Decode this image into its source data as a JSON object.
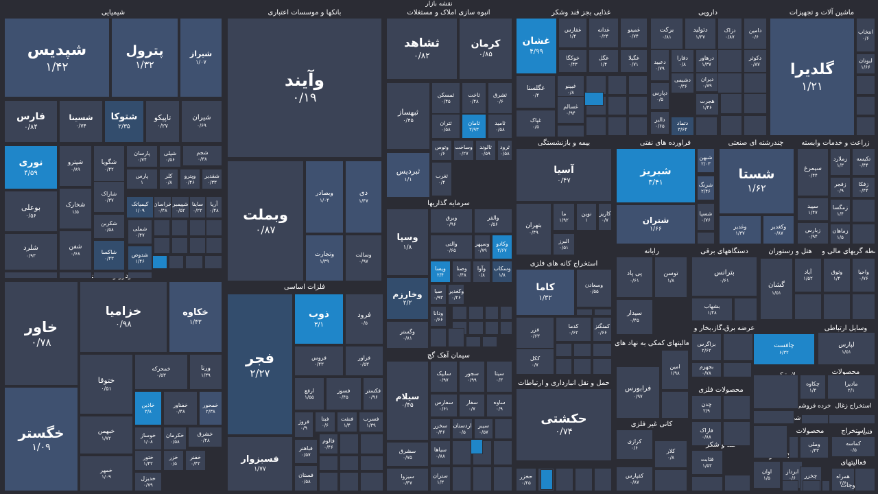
{
  "header": {
    "title": "نقشه بازار"
  },
  "colors": {
    "background": "#2b2c34",
    "neutral": "#3b4356",
    "light": "#3f5170",
    "medium": "#334d6d",
    "strong": "#1f86c9",
    "label": "#ffffff"
  },
  "chart_data": {
    "type": "treemap",
    "title": "نقشه بازار",
    "sectors": [
      {
        "name": "شیمیایی",
        "items": [
          {
            "n": "شپدیس",
            "v": "۱/۴۲"
          },
          {
            "n": "پترول",
            "v": "۱/۳۲"
          },
          {
            "n": "شیراز",
            "v": "۱/۰۷"
          },
          {
            "n": "فارس",
            "v": "۰/۸۴"
          },
          {
            "n": "شسینا",
            "v": "۰/۷۴"
          },
          {
            "n": "شتوکا",
            "v": "۲/۳۵"
          },
          {
            "n": "تاپیکو",
            "v": "۰/۲۷"
          },
          {
            "n": "شیران",
            "v": "۰/۶۹"
          },
          {
            "n": "نوری",
            "v": "۴/۵۹"
          },
          {
            "n": "شپترو",
            "v": "۰/۸۹"
          },
          {
            "n": "شگویا",
            "v": "۰/۴۲"
          },
          {
            "n": "پارسان",
            "v": "۰/۷۴"
          },
          {
            "n": "شپلی",
            "v": "۰/۵۶"
          },
          {
            "n": "شجم",
            "v": "۰/۳۸"
          },
          {
            "n": "پارس",
            "v": "۱"
          },
          {
            "n": "کلر",
            "v": "۰/۸"
          },
          {
            "n": "وپترو",
            "v": "۰/۴۶"
          },
          {
            "n": "شفدیر",
            "v": "۰/۳۳"
          },
          {
            "n": "بوعلی",
            "v": "۰/۵۶"
          },
          {
            "n": "شخارک",
            "v": "۱/۵"
          },
          {
            "n": "شاراک",
            "v": "۰/۳۷"
          },
          {
            "n": "کیمیاتک",
            "v": "۱/۰۹"
          },
          {
            "n": "خراسان",
            "v": "۰/۴۸"
          },
          {
            "n": "شپیمبر",
            "v": "۰/۵۲"
          },
          {
            "n": "ساینا",
            "v": "۰/۲۲"
          },
          {
            "n": "آریا",
            "v": "۰/۴۸"
          },
          {
            "n": "شلرد",
            "v": "۰/۹۳"
          },
          {
            "n": "شفن",
            "v": "۰/۶۸"
          },
          {
            "n": "شکربن",
            "v": "۰/۵۸"
          },
          {
            "n": "شملی",
            "v": "۰/۴۷"
          },
          {
            "n": "شاکسا",
            "v": "۰/۴۳"
          },
          {
            "n": "شدوص",
            "v": "۱/۴۶"
          }
        ]
      },
      {
        "name": "بانکها و موسسات اعتباری",
        "items": [
          {
            "n": "وآیند",
            "v": "۰/۱۹"
          },
          {
            "n": "وبملت",
            "v": "۰/۸۷"
          },
          {
            "n": "وبصادر",
            "v": "۱/۰۴"
          },
          {
            "n": "دی",
            "v": "۱/۴۷"
          },
          {
            "n": "وتجارت",
            "v": "۱/۳۹"
          },
          {
            "n": "وسالت",
            "v": "۰/۹۷"
          }
        ]
      },
      {
        "name": "انبوه سازی املاک و مستغلات",
        "items": [
          {
            "n": "ثشاهد",
            "v": "۰/۸۲"
          },
          {
            "n": "کرمان",
            "v": "۰/۸۵"
          },
          {
            "n": "ثبهساز",
            "v": "۰/۴۵"
          },
          {
            "n": "ثمسکن",
            "v": "۰/۴۵"
          },
          {
            "n": "ثاخت",
            "v": "۰/۴۸"
          },
          {
            "n": "ثشرق",
            "v": "۰/۶"
          },
          {
            "n": "ثتران",
            "v": "۰/۵۸"
          },
          {
            "n": "ثامان",
            "v": "۲/۹۳"
          },
          {
            "n": "ثامید",
            "v": "۰/۵۸"
          },
          {
            "n": "وتوس",
            "v": "۰/۶"
          },
          {
            "n": "وساخت",
            "v": "۰/۲۷"
          },
          {
            "n": "ثالوند",
            "v": "۰/۵۹"
          },
          {
            "n": "ثرود",
            "v": "۰/۵۸"
          },
          {
            "n": "ثبردیس",
            "v": "۱/۱"
          },
          {
            "n": "ثغرب",
            "v": "۰/۴"
          }
        ]
      },
      {
        "name": "غذایی بجز قند وشکر",
        "items": [
          {
            "n": "غشان",
            "v": "۴/۹۹"
          },
          {
            "n": "غفارس",
            "v": "۱/۴"
          },
          {
            "n": "غدانه",
            "v": "۰/۲۴"
          },
          {
            "n": "غمینو",
            "v": "۰/۷۴"
          },
          {
            "n": "خوکگا",
            "v": "۰/۴۳"
          },
          {
            "n": "غگل",
            "v": "۱/۴"
          },
          {
            "n": "غگیلا",
            "v": "۰/۷۱"
          },
          {
            "n": "غگلستا",
            "v": "۰/۴"
          },
          {
            "n": "غبینو",
            "v": "۰/۸"
          },
          {
            "n": "غسالم",
            "v": "۰/۹۴"
          },
          {
            "n": "غپاک",
            "v": "۰/۵"
          }
        ]
      },
      {
        "name": "دارویی",
        "items": [
          {
            "n": "برکت",
            "v": "۰/۸۱"
          },
          {
            "n": "دتولید",
            "v": "۱/۳۷"
          },
          {
            "n": "دزاک",
            "v": "۰/۸۷"
          },
          {
            "n": "دامین",
            "v": "۰/۶"
          },
          {
            "n": "دعبید",
            "v": "۰/۷۹"
          },
          {
            "n": "دفارا",
            "v": "۰/۸"
          },
          {
            "n": "درهاور",
            "v": "۱/۳۷"
          },
          {
            "n": "دکوثر",
            "v": "۰/۸۷"
          },
          {
            "n": "دشیمی",
            "v": "۰/۳۶"
          },
          {
            "n": "دیران",
            "v": "۰/۸۹"
          },
          {
            "n": "دپارس",
            "v": "۰/۵"
          },
          {
            "n": "هجرت",
            "v": "۱/۴۶"
          },
          {
            "n": "دالبر",
            "v": "۰/۶۵"
          },
          {
            "n": "دتماد",
            "v": "۳/۶۴"
          }
        ]
      },
      {
        "name": "ماشین آلات و تجهیزات",
        "items": [
          {
            "n": "گلدیرا",
            "v": "۱/۲۱"
          },
          {
            "n": "انتخاب",
            "v": "۰/۶"
          },
          {
            "n": "لبونان",
            "v": "۱/۶۶"
          }
        ]
      },
      {
        "name": "بیمه و بازنشستگی",
        "items": [
          {
            "n": "آسیا",
            "v": "۰/۴۷"
          },
          {
            "n": "بتهران",
            "v": "۰/۴۹"
          },
          {
            "n": "ما",
            "v": "۱/۹۲"
          },
          {
            "n": "نوین",
            "v": "۱"
          },
          {
            "n": "کاریز",
            "v": "۰/۷"
          },
          {
            "n": "البرز",
            "v": "۰/۵۱"
          }
        ]
      },
      {
        "name": "فراورده های نفتی",
        "items": [
          {
            "n": "شبریز",
            "v": "۳/۴۱"
          },
          {
            "n": "شبهن",
            "v": "۲/۰۳"
          },
          {
            "n": "شرنگ",
            "v": "۲/۴۶"
          },
          {
            "n": "شتران",
            "v": "۱/۶۶"
          },
          {
            "n": "شسپا",
            "v": "۰/۷۶"
          }
        ]
      },
      {
        "name": "چندرشته ای صنعتی",
        "items": [
          {
            "n": "شستا",
            "v": "۱/۶۲"
          },
          {
            "n": "وغدیر",
            "v": "۱/۳۷"
          },
          {
            "n": "وکغدیر",
            "v": "۰/۸۷"
          }
        ]
      },
      {
        "name": "زراعت و خدمات وابسته",
        "items": [
          {
            "n": "سیمرغ",
            "v": "۰/۴۴"
          },
          {
            "n": "زملارد",
            "v": "۱/۳"
          },
          {
            "n": "تکیسه",
            "v": "۰/۴۴"
          },
          {
            "n": "زفجر",
            "v": "۰/۹"
          },
          {
            "n": "زفکا",
            "v": "۰/۴۴"
          },
          {
            "n": "سپید",
            "v": "۱/۴۷"
          },
          {
            "n": "زمگسا",
            "v": "۱/۴"
          },
          {
            "n": "زبارس",
            "v": "۰/۹۴"
          },
          {
            "n": "زماهان",
            "v": "۱/۵"
          }
        ]
      },
      {
        "name": "خودرو و قطعات",
        "items": [
          {
            "n": "خاور",
            "v": "۰/۷۸"
          },
          {
            "n": "خزامیا",
            "v": "۰/۹۸"
          },
          {
            "n": "خکاوه",
            "v": "۱/۴۳"
          },
          {
            "n": "ختوقا",
            "v": "۰/۵۱"
          },
          {
            "n": "خمحرکه",
            "v": "۰/۵۳"
          },
          {
            "n": "ورنا",
            "v": "۱/۳۹"
          },
          {
            "n": "خگستر",
            "v": "۱/۰۹"
          },
          {
            "n": "خاذین",
            "v": "۳/۸"
          },
          {
            "n": "خفناور",
            "v": "۰/۴۸"
          },
          {
            "n": "خمحور",
            "v": "۲/۳۸"
          },
          {
            "n": "خبهمن",
            "v": "۱/۷۲"
          },
          {
            "n": "خوساز",
            "v": "۱/۰۸"
          },
          {
            "n": "خکرمان",
            "v": "۰/۵۸"
          },
          {
            "n": "خشرق",
            "v": "۰/۲۸"
          },
          {
            "n": "خمهر",
            "v": "۱/۰۹"
          },
          {
            "n": "ختور",
            "v": "۱/۴۲"
          },
          {
            "n": "خزر",
            "v": "۰/۵"
          },
          {
            "n": "خفنر",
            "v": "۰/۴۲"
          },
          {
            "n": "خدیزل",
            "v": "۰/۷۹"
          }
        ]
      },
      {
        "name": "فلزات اساسی",
        "items": [
          {
            "n": "فجر",
            "v": "۲/۲۷"
          },
          {
            "n": "ذوب",
            "v": "۳/۱"
          },
          {
            "n": "فرود",
            "v": "۰/۵"
          },
          {
            "n": "فروس",
            "v": "۰/۴۳"
          },
          {
            "n": "فراور",
            "v": "۰/۵۳"
          },
          {
            "n": "ارفع",
            "v": "۱/۵۵"
          },
          {
            "n": "فسوز",
            "v": "۰/۴۵"
          },
          {
            "n": "فکستر",
            "v": "۰/۹۶"
          },
          {
            "n": "فروژ",
            "v": "۰/۹"
          },
          {
            "n": "فبتا",
            "v": "۰/۶"
          },
          {
            "n": "فنفت",
            "v": "۱/۴"
          },
          {
            "n": "فسرب",
            "v": "۱/۳۹"
          },
          {
            "n": "فباهنر",
            "v": "۰/۵۷"
          },
          {
            "n": "فالوم",
            "v": "۰/۴۶"
          },
          {
            "n": "فستان",
            "v": "۰/۵۸"
          },
          {
            "n": "فسبزوار",
            "v": "۱/۷۷"
          }
        ]
      },
      {
        "name": "سرمایه گذاریها",
        "items": [
          {
            "n": "وسپا",
            "v": "۱/۸"
          },
          {
            "n": "وبرق",
            "v": "۰/۹۶"
          },
          {
            "n": "والفر",
            "v": "۰/۵۶"
          },
          {
            "n": "والتی",
            "v": "۰/۶۵"
          },
          {
            "n": "وسپهر",
            "v": "۰/۷۹"
          },
          {
            "n": "وکادو",
            "v": "۲/۶۷"
          },
          {
            "n": "ویسا",
            "v": "۲/۴"
          },
          {
            "n": "وصنا",
            "v": "۰/۴۸"
          },
          {
            "n": "وآوا",
            "v": "۰/۸"
          },
          {
            "n": "وسکاب",
            "v": "۱/۸"
          },
          {
            "n": "وخارزم",
            "v": "۲/۲"
          },
          {
            "n": "صبا",
            "v": "۰/۹۳"
          },
          {
            "n": "وکغدیر",
            "v": "۰/۲۶"
          },
          {
            "n": "ودانا",
            "v": "۰/۶۶"
          },
          {
            "n": "وگستر",
            "v": "۰/۸۱"
          }
        ]
      },
      {
        "name": "سیمان آهک گچ",
        "items": [
          {
            "n": "سیلام",
            "v": "۰/۴۵"
          },
          {
            "n": "سایپک",
            "v": "۰/۹۷"
          },
          {
            "n": "سجور",
            "v": "۰/۹۹"
          },
          {
            "n": "سیتا",
            "v": "۰/۳"
          },
          {
            "n": "سفارس",
            "v": "۰/۶۱"
          },
          {
            "n": "سفار",
            "v": "۰/۷"
          },
          {
            "n": "ساوه",
            "v": "۰/۹"
          },
          {
            "n": "سخزر",
            "v": "۰/۴۶"
          },
          {
            "n": "اردستان",
            "v": "۰/۵"
          },
          {
            "n": "سیبر",
            "v": "۰/۵۷"
          },
          {
            "n": "سشرق",
            "v": "۰/۷۵"
          },
          {
            "n": "سیاها",
            "v": "۰/۸۸"
          },
          {
            "n": "سیزوا",
            "v": "۰/۴۷"
          },
          {
            "n": "ستران",
            "v": "۱/۳"
          }
        ]
      },
      {
        "name": "استخراج کانه های فلزی",
        "items": [
          {
            "n": "کاما",
            "v": "۱/۳۲"
          },
          {
            "n": "وسعادن",
            "v": "۰/۵۵"
          },
          {
            "n": "فزر",
            "v": "۰/۶۳"
          },
          {
            "n": "کدما",
            "v": "۰/۶۲"
          },
          {
            "n": "کمنگنز",
            "v": "۰/۶۶"
          },
          {
            "n": "ککل",
            "v": "۰/۷"
          }
        ]
      },
      {
        "name": "حمل و نقل انبارداری و ارتباطات",
        "items": [
          {
            "n": "حکشتی",
            "v": "۰/۷۴"
          },
          {
            "n": "حخزر",
            "v": "۰/۲۵"
          }
        ]
      },
      {
        "name": "رایانه",
        "items": [
          {
            "n": "پی پاد",
            "v": "۰/۶۱"
          },
          {
            "n": "توسن",
            "v": "۱/۸"
          },
          {
            "n": "سیدار",
            "v": "۰/۴۵"
          }
        ]
      },
      {
        "name": "دستگاههای برقی",
        "items": [
          {
            "n": "بترانس",
            "v": "۰/۶۱"
          },
          {
            "n": "بشهاب",
            "v": "۱/۴۸"
          }
        ]
      },
      {
        "name": "هتل و رستوران",
        "items": []
      },
      {
        "name": "واسطه گریهای مالی و",
        "items": [
          {
            "n": "گشان",
            "v": "۱/۵۱"
          },
          {
            "n": "آیاد",
            "v": "۱/۵۲"
          },
          {
            "n": "وثوق",
            "v": "۱/۴"
          },
          {
            "n": "واحیا",
            "v": "۰/۷۶"
          }
        ]
      },
      {
        "name": "عرضه برق،گاز،بخار و",
        "items": [
          {
            "n": "بزاگرس",
            "v": "۲/۶۲"
          },
          {
            "n": "بجهرم",
            "v": "۰/۷۸"
          }
        ]
      },
      {
        "name": "چاپ",
        "items": [
          {
            "n": "چافست",
            "v": "۶/۳۲"
          }
        ]
      },
      {
        "name": "وسایل ارتباطی",
        "items": [
          {
            "n": "لپارس",
            "v": "۱/۵۱"
          }
        ]
      },
      {
        "name": "فعالیتهای کمکی به نهاد های",
        "items": [
          {
            "n": "فرابورس",
            "v": "۰/۹۷"
          },
          {
            "n": "امین",
            "v": "۱/۹۸"
          }
        ]
      },
      {
        "name": "محصولات فلزی",
        "items": [
          {
            "n": "چدن",
            "v": "۲/۹"
          },
          {
            "n": "فاراک",
            "v": "۰/۸۸"
          }
        ]
      },
      {
        "name": "لاستیک و",
        "items": []
      },
      {
        "name": "محصولات",
        "items": [
          {
            "n": "چکاوه",
            "v": "۱/۳"
          },
          {
            "n": "مادیرا",
            "v": "۲/۱"
          }
        ]
      },
      {
        "name": "کانی غیر فلزی",
        "items": [
          {
            "n": "کرازی",
            "v": "۰/۶"
          },
          {
            "n": "کلار",
            "v": "۰/۸"
          },
          {
            "n": "کفپارس",
            "v": "۰/۸۷"
          }
        ]
      },
      {
        "name": "کاشی و سرامیک",
        "items": []
      },
      {
        "name": "استخراج زغال",
        "items": []
      },
      {
        "name": "خرده فروشی",
        "items": []
      },
      {
        "name": "محصولات",
        "items": [
          {
            "n": "وملی",
            "v": "۰/۴۳"
          }
        ]
      },
      {
        "name": "استخراج",
        "items": [
          {
            "n": "کماسه",
            "v": "۰/۵"
          }
        ]
      },
      {
        "name": "فنی و",
        "items": []
      },
      {
        "name": "قند و شکر",
        "items": [
          {
            "n": "قثابت",
            "v": "۱/۵۲"
          }
        ]
      },
      {
        "name": "اطلاعات و",
        "items": [
          {
            "n": "اوان",
            "v": "۱/۵"
          },
          {
            "n": "ابرداز",
            "v": "۰/۶"
          },
          {
            "n": "چخزر",
            "v": "۰/۴۶"
          }
        ]
      },
      {
        "name": "فعالیتهای",
        "items": [
          {
            "n": "همراه",
            "v": "۲/۶"
          }
        ]
      },
      {
        "name": "منسوجات",
        "items": []
      }
    ]
  }
}
